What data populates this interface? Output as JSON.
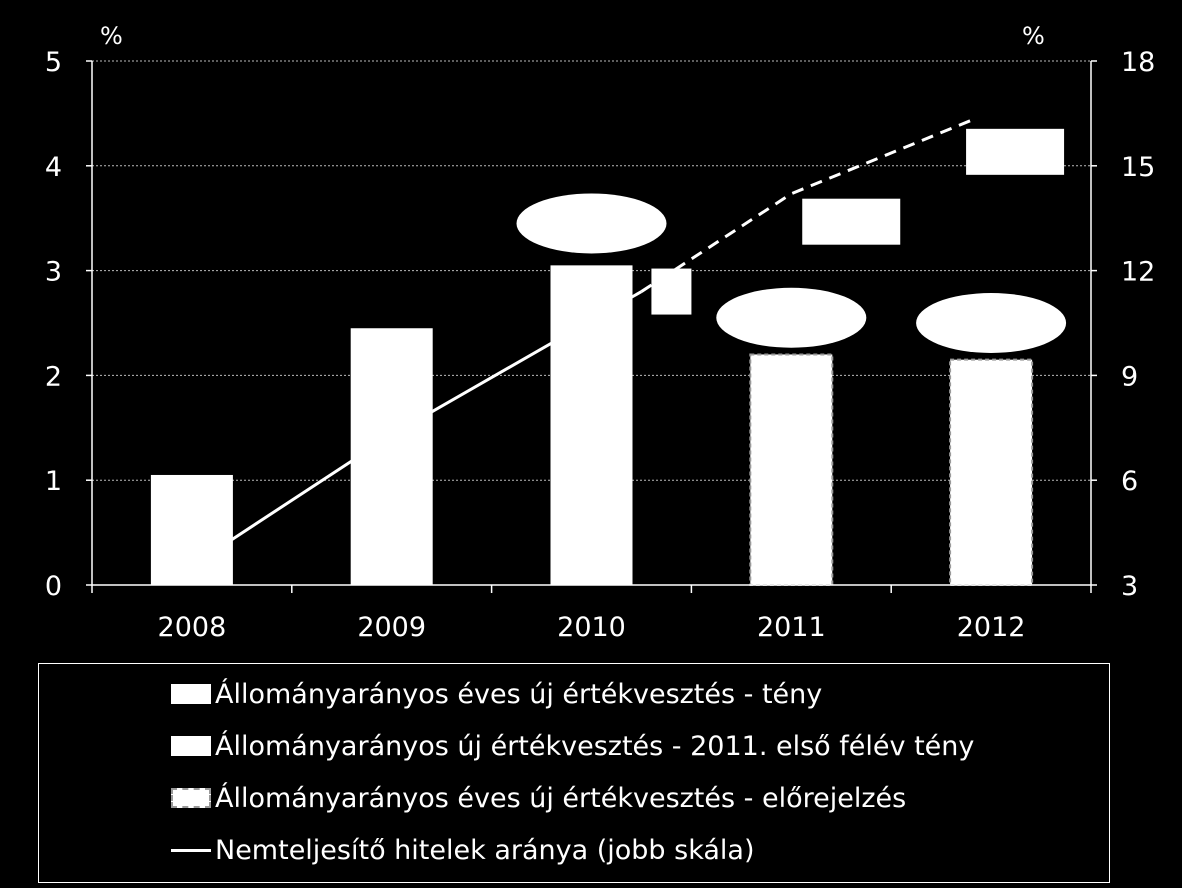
{
  "chart_data": {
    "type": "bar",
    "categories": [
      "2008",
      "2009",
      "2010",
      "2011",
      "2012"
    ],
    "left_axis": {
      "unit": "%",
      "ylim": [
        0,
        5
      ],
      "ticks": [
        "0",
        "1",
        "2",
        "3",
        "4",
        "5"
      ]
    },
    "right_axis": {
      "unit": "%",
      "ylim": [
        3,
        18
      ],
      "ticks": [
        "3",
        "6",
        "9",
        "12",
        "15",
        "18"
      ]
    },
    "series": [
      {
        "name": "Állományarányos éves új értékvesztés - tény",
        "kind": "bar",
        "style": "solid",
        "values": [
          1.05,
          2.45,
          3.05,
          null,
          null
        ]
      },
      {
        "name": "Állományarányos új értékvesztés - 2011. első félév tény",
        "kind": "bar",
        "style": "solid",
        "values": [
          null,
          null,
          null,
          null,
          null
        ]
      },
      {
        "name": "Állományarányos éves új értékvesztés - előrejelzés",
        "kind": "bar",
        "style": "dashed",
        "values": [
          null,
          null,
          null,
          2.2,
          2.15
        ]
      },
      {
        "name": "Nemteljesítő hitelek aránya (jobb skála)",
        "kind": "line",
        "axis": "right",
        "points": [
          {
            "x": 0.2,
            "y": 4.3
          },
          {
            "x": 1.0,
            "y": 7.3
          },
          {
            "x": 2.25,
            "y": 11.4
          },
          {
            "x": 3.0,
            "y": 14.2
          },
          {
            "x": 3.9,
            "y": 16.3
          }
        ],
        "dashed_from_x": 2.25
      }
    ],
    "grid": true,
    "legend_position": "bottom"
  },
  "colors": {
    "background": "#000000",
    "foreground": "#ffffff",
    "grid": "#bbbbbb"
  }
}
